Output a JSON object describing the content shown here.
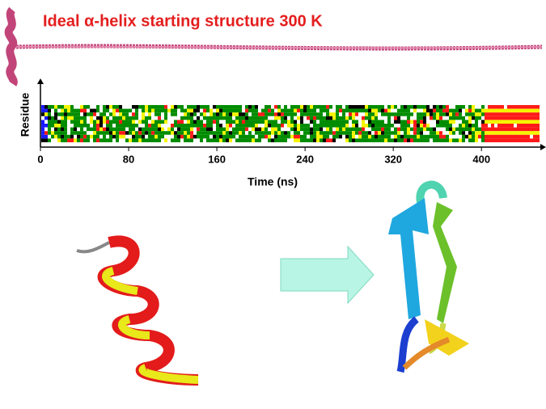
{
  "chart_data": {
    "type": "timeline",
    "title": "Ideal α-helix starting structure  300 K",
    "x_label": "Time (ns)",
    "y_label": "Residue",
    "xlim": [
      0,
      460
    ],
    "xticks": [
      0,
      80,
      160,
      240,
      320,
      400
    ]
  }
}
